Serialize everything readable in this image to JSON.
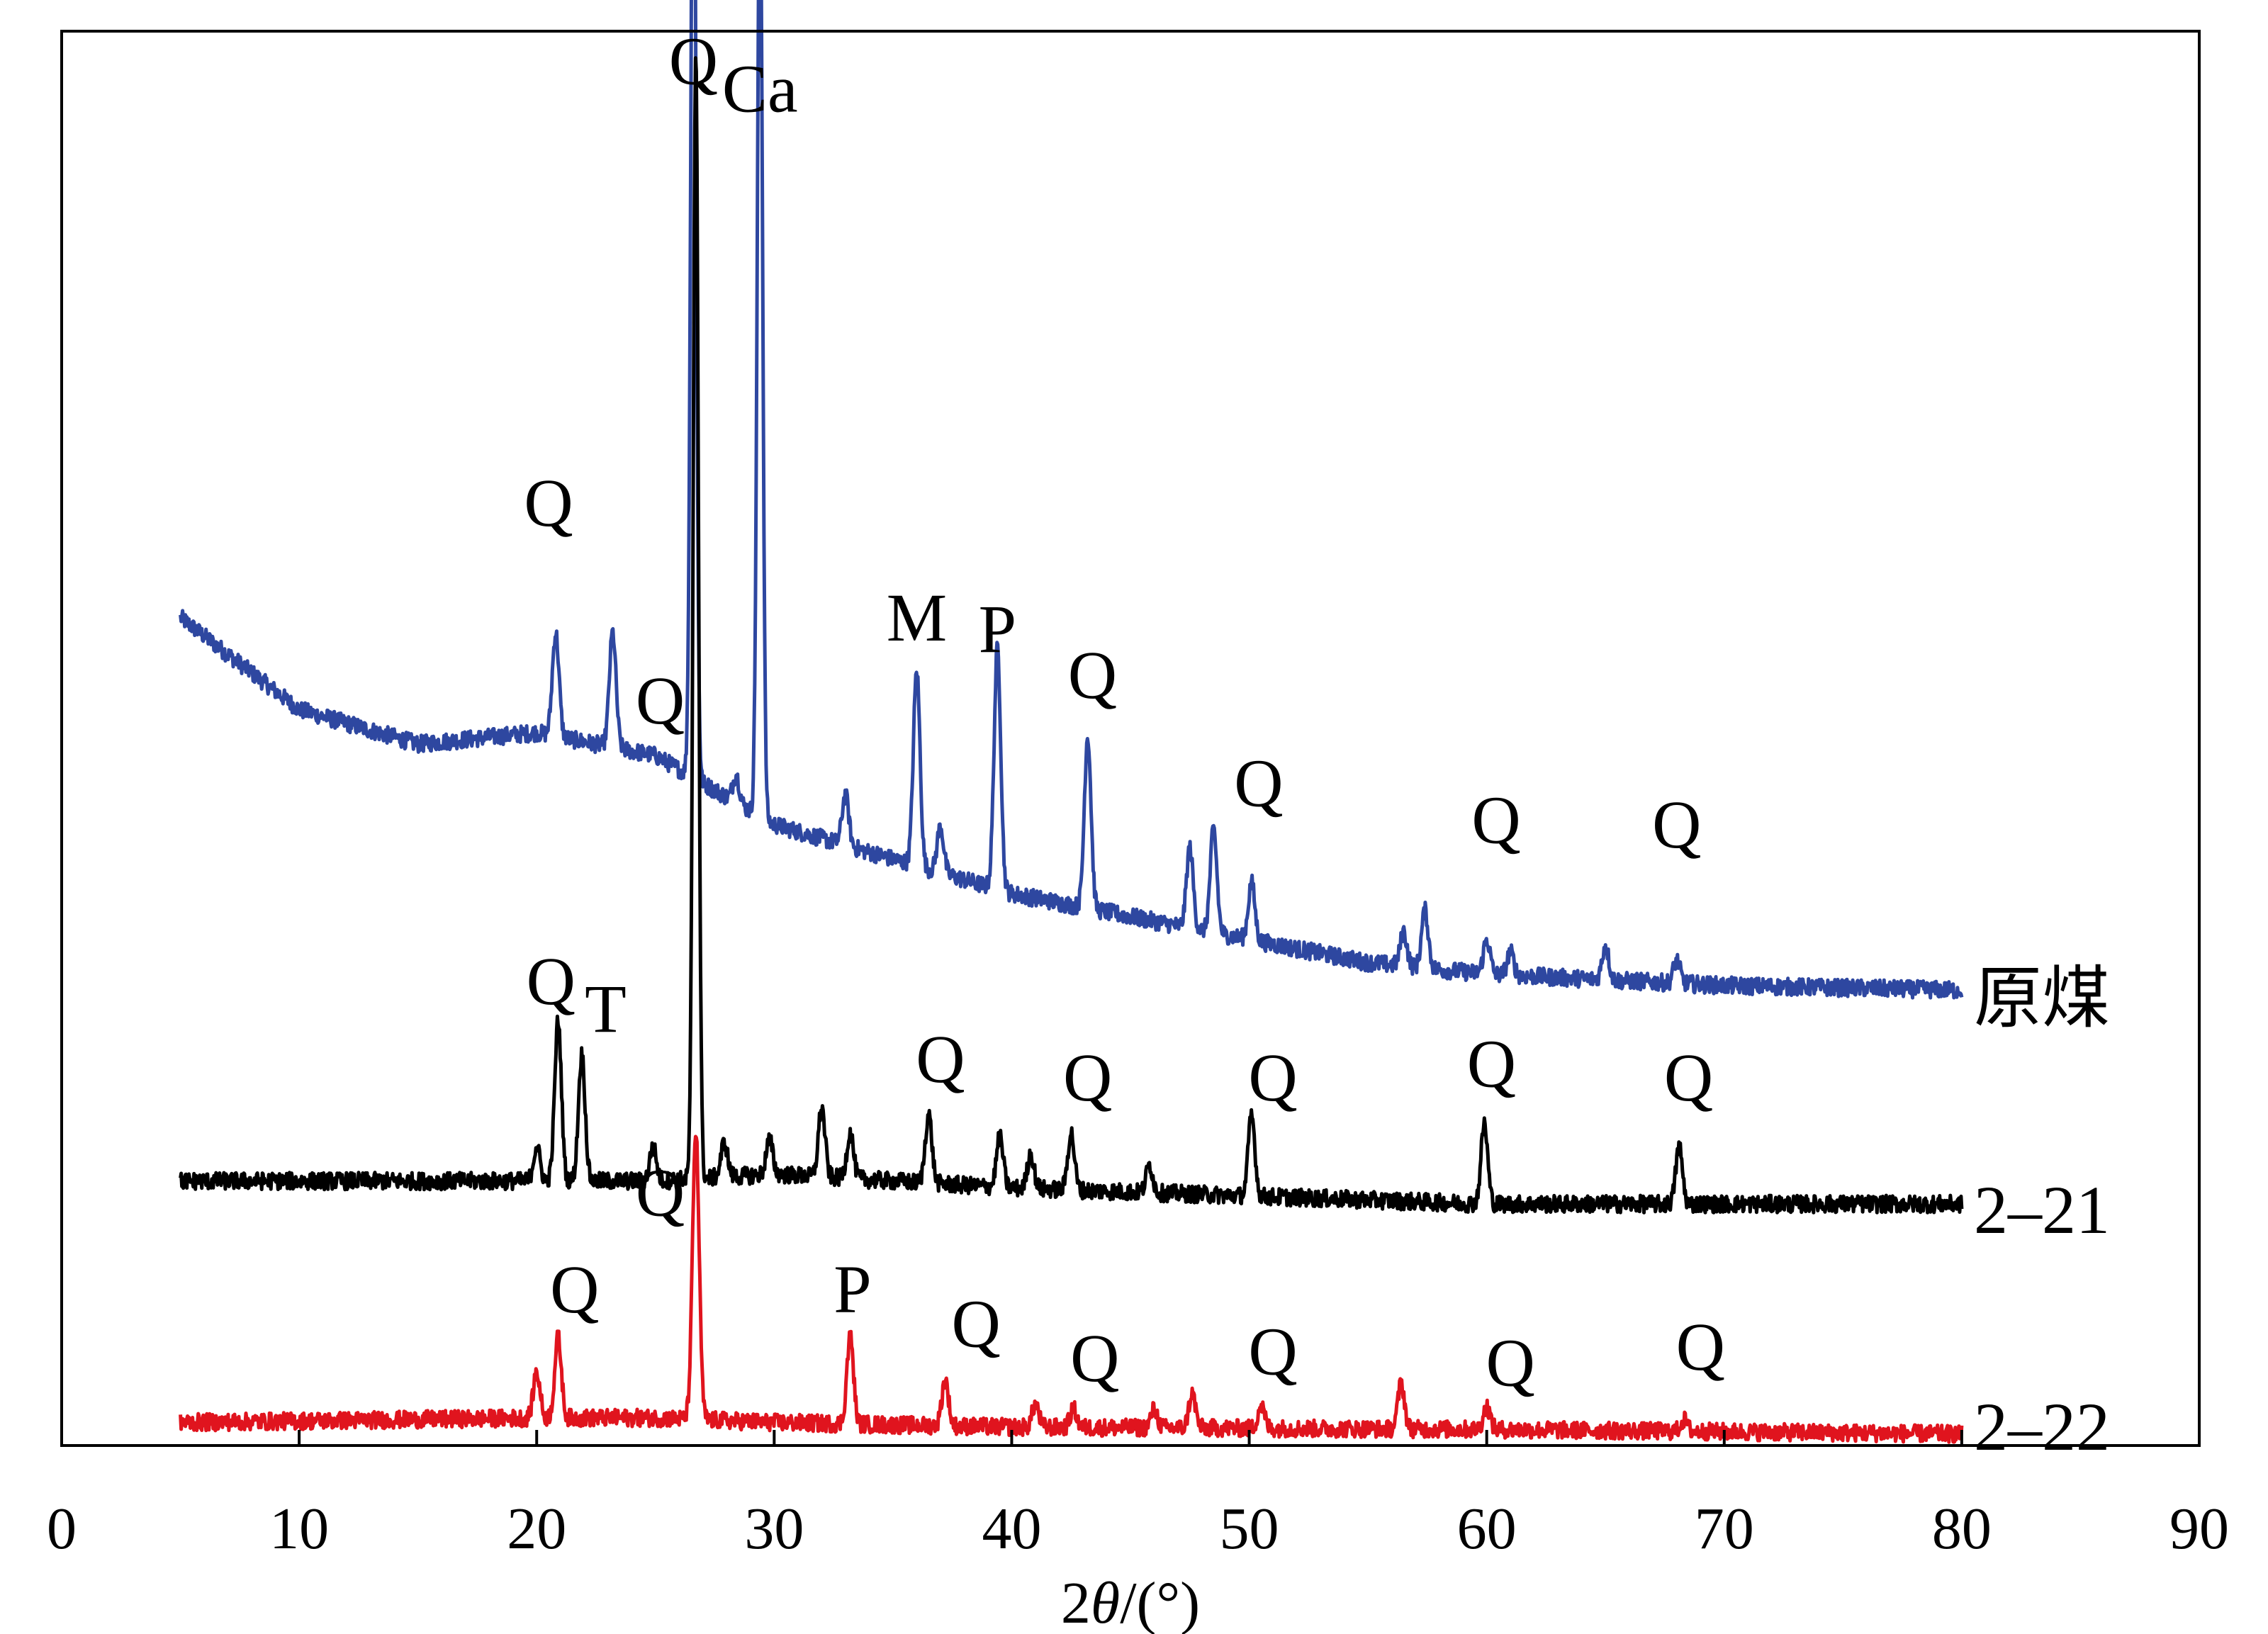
{
  "chart_data": {
    "type": "line",
    "xlabel_prefix": "2",
    "xlabel_theta": "θ",
    "xlabel_suffix": "/(°)",
    "ylabel": "",
    "xlim": [
      0,
      90
    ],
    "x_ticks": [
      0,
      10,
      20,
      30,
      40,
      50,
      60,
      70,
      80,
      90
    ],
    "y_ticks_shown": false,
    "grid": false,
    "x_range_of_data": [
      5,
      80
    ],
    "series": [
      {
        "name": "原煤",
        "color": "#2e47a0",
        "baseline": [
          [
            5,
            3.6
          ],
          [
            10,
            3.2
          ],
          [
            15,
            3.05
          ],
          [
            20,
            3.1
          ],
          [
            25,
            3.0
          ],
          [
            30,
            2.7
          ],
          [
            35,
            2.55
          ],
          [
            40,
            2.4
          ],
          [
            45,
            2.3
          ],
          [
            50,
            2.2
          ],
          [
            55,
            2.1
          ],
          [
            60,
            2.05
          ],
          [
            70,
            2.0
          ],
          [
            80,
            1.98
          ]
        ],
        "peaks": [
          {
            "x": 20.8,
            "h": 0.45,
            "label": "Q"
          },
          {
            "x": 23.2,
            "h": 0.5,
            "label": ""
          },
          {
            "x": 26.6,
            "h": 4.7,
            "label": "Q"
          },
          {
            "x": 28.4,
            "h": 0.12,
            "label": ""
          },
          {
            "x": 29.4,
            "h": 4.2,
            "label": "Ca"
          },
          {
            "x": 33.0,
            "h": 0.22,
            "label": ""
          },
          {
            "x": 36.0,
            "h": 0.85,
            "label": "M"
          },
          {
            "x": 37.0,
            "h": 0.2,
            "label": ""
          },
          {
            "x": 39.4,
            "h": 1.05,
            "label": "P"
          },
          {
            "x": 43.2,
            "h": 0.75,
            "label": "Q"
          },
          {
            "x": 47.5,
            "h": 0.35,
            "label": ""
          },
          {
            "x": 48.5,
            "h": 0.45,
            "label": ""
          },
          {
            "x": 50.1,
            "h": 0.25,
            "label": "Q"
          },
          {
            "x": 56.5,
            "h": 0.15,
            "label": ""
          },
          {
            "x": 57.4,
            "h": 0.25,
            "label": ""
          },
          {
            "x": 60.0,
            "h": 0.15,
            "label": "Q"
          },
          {
            "x": 61.0,
            "h": 0.1,
            "label": ""
          },
          {
            "x": 65.0,
            "h": 0.15,
            "label": ""
          },
          {
            "x": 68.0,
            "h": 0.1,
            "label": "Q"
          }
        ]
      },
      {
        "name": "2–21",
        "color": "#000000",
        "baseline": [
          [
            5,
            1.15
          ],
          [
            20,
            1.15
          ],
          [
            25,
            1.15
          ],
          [
            30,
            1.18
          ],
          [
            40,
            1.12
          ],
          [
            60,
            1.05
          ],
          [
            80,
            1.05
          ]
        ],
        "peaks": [
          {
            "x": 20.0,
            "h": 0.15,
            "label": ""
          },
          {
            "x": 20.9,
            "h": 0.7,
            "label": "Q"
          },
          {
            "x": 21.9,
            "h": 0.55,
            "label": "T"
          },
          {
            "x": 24.9,
            "h": 0.15,
            "label": ""
          },
          {
            "x": 26.7,
            "h": 4.9,
            "label": "Q"
          },
          {
            "x": 27.9,
            "h": 0.15,
            "label": ""
          },
          {
            "x": 29.8,
            "h": 0.15,
            "label": ""
          },
          {
            "x": 32.0,
            "h": 0.3,
            "label": ""
          },
          {
            "x": 33.2,
            "h": 0.2,
            "label": ""
          },
          {
            "x": 36.5,
            "h": 0.3,
            "label": "Q"
          },
          {
            "x": 39.5,
            "h": 0.22,
            "label": ""
          },
          {
            "x": 40.8,
            "h": 0.15,
            "label": ""
          },
          {
            "x": 42.5,
            "h": 0.25,
            "label": "Q"
          },
          {
            "x": 45.8,
            "h": 0.12,
            "label": ""
          },
          {
            "x": 50.1,
            "h": 0.35,
            "label": "Q"
          },
          {
            "x": 59.9,
            "h": 0.35,
            "label": "Q"
          },
          {
            "x": 68.1,
            "h": 0.25,
            "label": "Q"
          }
        ]
      },
      {
        "name": "2–22",
        "color": "#e0141e",
        "baseline": [
          [
            5,
            0.1
          ],
          [
            20,
            0.12
          ],
          [
            25,
            0.12
          ],
          [
            30,
            0.1
          ],
          [
            40,
            0.08
          ],
          [
            60,
            0.07
          ],
          [
            80,
            0.05
          ]
        ],
        "peaks": [
          {
            "x": 20.0,
            "h": 0.2,
            "label": ""
          },
          {
            "x": 20.9,
            "h": 0.35,
            "label": "Q"
          },
          {
            "x": 26.7,
            "h": 1.25,
            "label": "Q"
          },
          {
            "x": 33.2,
            "h": 0.38,
            "label": "P"
          },
          {
            "x": 37.2,
            "h": 0.2,
            "label": "Q"
          },
          {
            "x": 41.0,
            "h": 0.1,
            "label": ""
          },
          {
            "x": 42.6,
            "h": 0.08,
            "label": "Q"
          },
          {
            "x": 46.0,
            "h": 0.08,
            "label": ""
          },
          {
            "x": 47.6,
            "h": 0.15,
            "label": ""
          },
          {
            "x": 50.5,
            "h": 0.1,
            "label": "Q"
          },
          {
            "x": 56.4,
            "h": 0.2,
            "label": ""
          },
          {
            "x": 60.0,
            "h": 0.1,
            "label": "Q"
          },
          {
            "x": 68.3,
            "h": 0.05,
            "label": "Q"
          }
        ]
      }
    ],
    "annotations": [
      {
        "text": "Q",
        "x": 26.6,
        "y": 5.92,
        "series": "原煤"
      },
      {
        "text": "Ca",
        "x": 29.4,
        "y": 5.8,
        "series": "原煤"
      },
      {
        "text": "Q",
        "x": 20.5,
        "y": 4.0,
        "series": "原煤"
      },
      {
        "text": "M",
        "x": 36.0,
        "y": 3.5,
        "series": "原煤"
      },
      {
        "text": "P",
        "x": 39.4,
        "y": 3.45,
        "series": "原煤"
      },
      {
        "text": "Q",
        "x": 43.4,
        "y": 3.25,
        "series": "原煤"
      },
      {
        "text": "Q",
        "x": 50.4,
        "y": 2.78,
        "series": "原煤"
      },
      {
        "text": "Q",
        "x": 60.4,
        "y": 2.62,
        "series": "原煤"
      },
      {
        "text": "Q",
        "x": 68.0,
        "y": 2.6,
        "series": "原煤"
      },
      {
        "text": "Q",
        "x": 25.2,
        "y": 3.14,
        "series": "2–21"
      },
      {
        "text": "Q",
        "x": 20.6,
        "y": 1.92,
        "series": "2–21"
      },
      {
        "text": "T",
        "x": 22.9,
        "y": 1.8,
        "series": "2–21"
      },
      {
        "text": "Q",
        "x": 37.0,
        "y": 1.58,
        "series": "2–21"
      },
      {
        "text": "Q",
        "x": 43.2,
        "y": 1.5,
        "series": "2–21"
      },
      {
        "text": "Q",
        "x": 51.0,
        "y": 1.5,
        "series": "2–21"
      },
      {
        "text": "Q",
        "x": 60.2,
        "y": 1.56,
        "series": "2–21"
      },
      {
        "text": "Q",
        "x": 68.5,
        "y": 1.5,
        "series": "2–21"
      },
      {
        "text": "Q",
        "x": 25.2,
        "y": 1.0,
        "series": "2–22"
      },
      {
        "text": "Q",
        "x": 21.6,
        "y": 0.58,
        "series": "2–22"
      },
      {
        "text": "P",
        "x": 33.3,
        "y": 0.58,
        "series": "2–22"
      },
      {
        "text": "Q",
        "x": 38.5,
        "y": 0.43,
        "series": "2–22"
      },
      {
        "text": "Q",
        "x": 43.5,
        "y": 0.28,
        "series": "2–22"
      },
      {
        "text": "Q",
        "x": 51.0,
        "y": 0.31,
        "series": "2–22"
      },
      {
        "text": "Q",
        "x": 61.0,
        "y": 0.26,
        "series": "2–22"
      },
      {
        "text": "Q",
        "x": 69.0,
        "y": 0.33,
        "series": "2–22"
      }
    ],
    "sample_labels": [
      {
        "text": "原煤",
        "series": "原煤"
      },
      {
        "text": "2–21",
        "series": "2–21"
      },
      {
        "text": "2–22",
        "series": "2–22"
      }
    ]
  }
}
